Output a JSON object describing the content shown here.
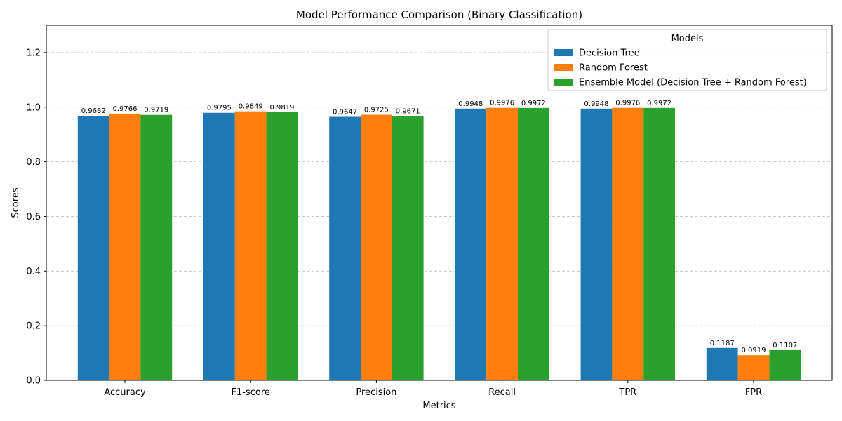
{
  "chart_data": {
    "type": "bar",
    "title": "Model Performance Comparison (Binary Classification)",
    "xlabel": "Metrics",
    "ylabel": "Scores",
    "ylim": [
      0,
      1.3
    ],
    "yticks": [
      "0.0",
      "0.2",
      "0.4",
      "0.6",
      "0.8",
      "1.0",
      "1.2"
    ],
    "grid": "y-dashed",
    "legend": {
      "title": "Models",
      "placement": "top-right"
    },
    "categories": [
      "Accuracy",
      "F1-score",
      "Precision",
      "Recall",
      "TPR",
      "FPR"
    ],
    "series": [
      {
        "name": "Decision Tree",
        "color": "#1f77b4",
        "values": [
          0.9682,
          0.9795,
          0.9647,
          0.9948,
          0.9948,
          0.1187
        ]
      },
      {
        "name": "Random Forest",
        "color": "#ff7f0e",
        "values": [
          0.9766,
          0.9849,
          0.9725,
          0.9976,
          0.9976,
          0.0919
        ]
      },
      {
        "name": "Ensemble Model (Decision Tree + Random Forest)",
        "color": "#2ca02c",
        "values": [
          0.9719,
          0.9819,
          0.9671,
          0.9972,
          0.9972,
          0.1107
        ]
      }
    ]
  }
}
